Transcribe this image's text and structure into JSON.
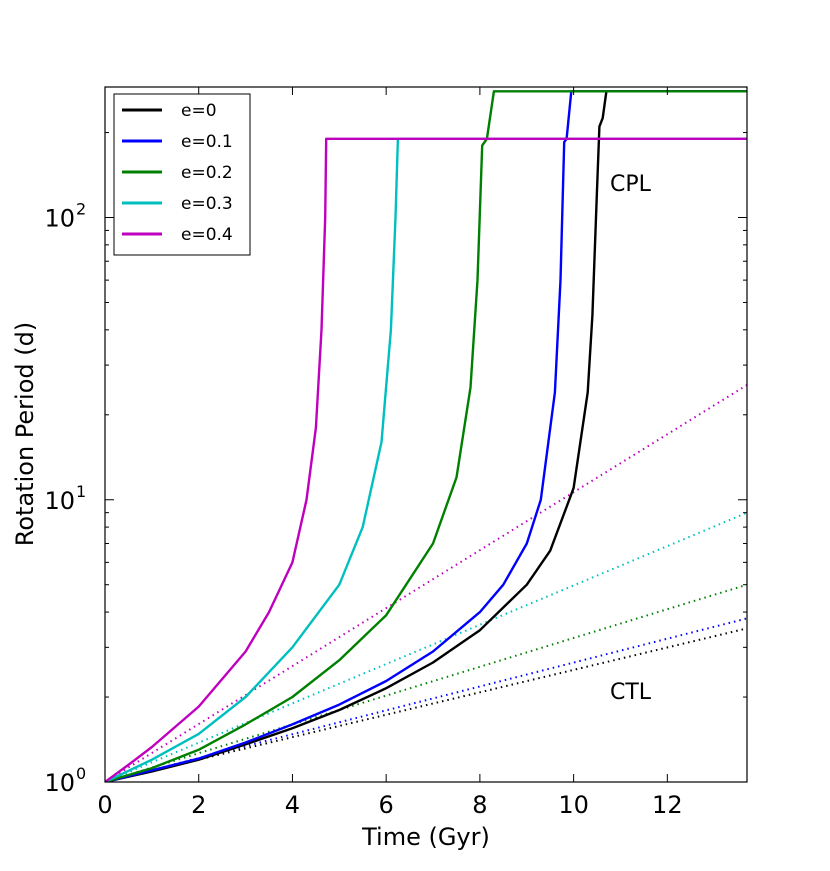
{
  "chart_data": {
    "type": "line",
    "xlabel": "Time (Gyr)",
    "ylabel": "Rotation Period (d)",
    "xlim": [
      0,
      13.7
    ],
    "ylim": [
      1,
      290
    ],
    "yscale": "log",
    "x_ticks": [
      "0",
      "2",
      "4",
      "6",
      "8",
      "10",
      "12"
    ],
    "x_tick_values": [
      0,
      2,
      4,
      6,
      8,
      10,
      12
    ],
    "y_ticks": [
      {
        "base": "10",
        "exp": "0",
        "value": 1
      },
      {
        "base": "10",
        "exp": "1",
        "value": 10
      },
      {
        "base": "10",
        "exp": "2",
        "value": 100
      }
    ],
    "annotations": [
      {
        "text": "CPL",
        "x": 10.8,
        "y": 175
      },
      {
        "text": "CTL",
        "x": 10.8,
        "y": 1.85
      }
    ],
    "legend": {
      "placement": "top-left",
      "entries": [
        "e=0",
        "e=0.1",
        "e=0.2",
        "e=0.3",
        "e=0.4"
      ]
    },
    "series": [
      {
        "name": "e=0",
        "model": "CPL",
        "color": "#000000",
        "style": "solid",
        "points": [
          [
            0,
            1
          ],
          [
            1,
            1.09
          ],
          [
            2,
            1.2
          ],
          [
            3,
            1.36
          ],
          [
            4,
            1.55
          ],
          [
            5,
            1.8
          ],
          [
            6,
            2.15
          ],
          [
            7,
            2.65
          ],
          [
            8,
            3.45
          ],
          [
            9,
            5.0
          ],
          [
            9.5,
            6.6
          ],
          [
            10,
            11
          ],
          [
            10.3,
            24
          ],
          [
            10.4,
            45
          ],
          [
            10.5,
            125
          ],
          [
            10.55,
            210
          ],
          [
            10.62,
            225
          ],
          [
            10.7,
            280
          ],
          [
            13.7,
            280
          ]
        ]
      },
      {
        "name": "e=0.1",
        "model": "CPL",
        "color": "#0000ff",
        "style": "solid",
        "points": [
          [
            0,
            1
          ],
          [
            1,
            1.1
          ],
          [
            2,
            1.21
          ],
          [
            3,
            1.38
          ],
          [
            4,
            1.6
          ],
          [
            5,
            1.88
          ],
          [
            6,
            2.28
          ],
          [
            7,
            2.9
          ],
          [
            8,
            4.0
          ],
          [
            8.5,
            5.0
          ],
          [
            9,
            7.0
          ],
          [
            9.3,
            10
          ],
          [
            9.6,
            24
          ],
          [
            9.72,
            60
          ],
          [
            9.8,
            185
          ],
          [
            9.85,
            190
          ],
          [
            9.95,
            280
          ],
          [
            13.7,
            280
          ]
        ]
      },
      {
        "name": "e=0.2",
        "model": "CPL",
        "color": "#008000",
        "style": "solid",
        "points": [
          [
            0,
            1
          ],
          [
            1,
            1.12
          ],
          [
            2,
            1.3
          ],
          [
            3,
            1.6
          ],
          [
            4,
            2.0
          ],
          [
            5,
            2.7
          ],
          [
            6,
            3.9
          ],
          [
            7,
            7.0
          ],
          [
            7.5,
            12
          ],
          [
            7.8,
            25
          ],
          [
            7.95,
            60
          ],
          [
            8.05,
            180
          ],
          [
            8.15,
            190
          ],
          [
            8.3,
            280
          ],
          [
            13.7,
            280
          ]
        ]
      },
      {
        "name": "e=0.3",
        "model": "CPL",
        "color": "#00bfbf",
        "style": "solid",
        "points": [
          [
            0,
            1
          ],
          [
            1,
            1.2
          ],
          [
            2,
            1.48
          ],
          [
            3,
            2.0
          ],
          [
            4,
            3.0
          ],
          [
            5,
            5.0
          ],
          [
            5.5,
            8.0
          ],
          [
            5.9,
            16
          ],
          [
            6.1,
            40
          ],
          [
            6.2,
            100
          ],
          [
            6.25,
            190
          ],
          [
            13.7,
            190
          ]
        ]
      },
      {
        "name": "e=0.4",
        "model": "CPL",
        "color": "#bf00bf",
        "style": "solid",
        "points": [
          [
            0,
            1
          ],
          [
            0.5,
            1.15
          ],
          [
            1,
            1.33
          ],
          [
            2,
            1.85
          ],
          [
            3,
            2.9
          ],
          [
            3.5,
            4.0
          ],
          [
            4,
            6.0
          ],
          [
            4.3,
            10
          ],
          [
            4.5,
            18
          ],
          [
            4.62,
            40
          ],
          [
            4.7,
            100
          ],
          [
            4.72,
            190
          ],
          [
            13.7,
            190
          ]
        ]
      },
      {
        "name": "e=0",
        "model": "CTL",
        "color": "#000000",
        "style": "dotted",
        "points": [
          [
            0,
            1
          ],
          [
            13.7,
            3.5
          ]
        ]
      },
      {
        "name": "e=0.1",
        "model": "CTL",
        "color": "#0000ff",
        "style": "dotted",
        "points": [
          [
            0,
            1
          ],
          [
            13.7,
            3.8
          ]
        ]
      },
      {
        "name": "e=0.2",
        "model": "CTL",
        "color": "#008000",
        "style": "dotted",
        "points": [
          [
            0,
            1
          ],
          [
            13.7,
            5.0
          ]
        ]
      },
      {
        "name": "e=0.3",
        "model": "CTL",
        "color": "#00bfbf",
        "style": "dotted",
        "points": [
          [
            0,
            1
          ],
          [
            13.7,
            9.0
          ]
        ]
      },
      {
        "name": "e=0.4",
        "model": "CTL",
        "color": "#bf00bf",
        "style": "dotted",
        "points": [
          [
            0,
            1
          ],
          [
            13.7,
            25.5
          ]
        ]
      }
    ]
  }
}
